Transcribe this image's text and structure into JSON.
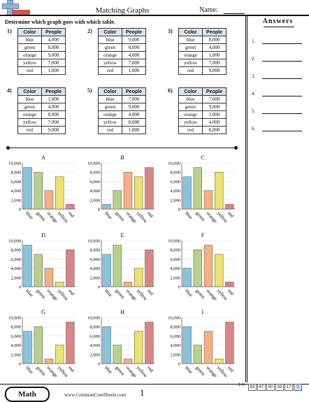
{
  "header": {
    "title": "Matching Graphs",
    "name_label": "Name:"
  },
  "instructions": "Determine which graph goes with which table.",
  "answers": {
    "title": "Answers",
    "items": [
      "1.",
      "2.",
      "3.",
      "4.",
      "5.",
      "6."
    ]
  },
  "tables": [
    {
      "num": "1)",
      "headers": [
        "Color",
        "People"
      ],
      "rows": [
        [
          "blue",
          "4,000"
        ],
        [
          "green",
          "8,000"
        ],
        [
          "orange",
          "9,000"
        ],
        [
          "yellow",
          "7,000"
        ],
        [
          "red",
          "1,000"
        ]
      ]
    },
    {
      "num": "2)",
      "headers": [
        "Color",
        "People"
      ],
      "rows": [
        [
          "blue",
          "9,000"
        ],
        [
          "green",
          "8,000"
        ],
        [
          "orange",
          "4,000"
        ],
        [
          "yellow",
          "7,000"
        ],
        [
          "red",
          "1,000"
        ]
      ]
    },
    {
      "num": "3)",
      "headers": [
        "Color",
        "People"
      ],
      "rows": [
        [
          "blue",
          "8,000"
        ],
        [
          "green",
          "4,000"
        ],
        [
          "orange",
          "1,000"
        ],
        [
          "yellow",
          "7,000"
        ],
        [
          "red",
          "9,000"
        ]
      ]
    },
    {
      "num": "4)",
      "headers": [
        "Color",
        "People"
      ],
      "rows": [
        [
          "blue",
          "1,000"
        ],
        [
          "green",
          "4,000"
        ],
        [
          "orange",
          "8,000"
        ],
        [
          "yellow",
          "7,000"
        ],
        [
          "red",
          "9,000"
        ]
      ]
    },
    {
      "num": "5)",
      "headers": [
        "Color",
        "People"
      ],
      "rows": [
        [
          "blue",
          "7,000"
        ],
        [
          "green",
          "9,000"
        ],
        [
          "orange",
          "4,000"
        ],
        [
          "yellow",
          "8,000"
        ],
        [
          "red",
          "1,000"
        ]
      ]
    },
    {
      "num": "6)",
      "headers": [
        "Color",
        "People"
      ],
      "rows": [
        [
          "blue",
          "7,000"
        ],
        [
          "green",
          "9,000"
        ],
        [
          "orange",
          "1,000"
        ],
        [
          "yellow",
          "4,000"
        ],
        [
          "red",
          "8,000"
        ]
      ]
    }
  ],
  "chart_data": [
    {
      "type": "bar",
      "title": "A",
      "categories": [
        "blue",
        "green",
        "orange",
        "yellow",
        "red"
      ],
      "values": [
        9000,
        8000,
        4000,
        7000,
        1000
      ],
      "ylim": [
        0,
        10000
      ],
      "yticks": [
        "0",
        "2,000",
        "4,000",
        "6,000",
        "8,000",
        "10,000"
      ]
    },
    {
      "type": "bar",
      "title": "B",
      "categories": [
        "blue",
        "green",
        "orange",
        "yellow",
        "red"
      ],
      "values": [
        1000,
        4000,
        8000,
        7000,
        9000
      ],
      "ylim": [
        0,
        10000
      ],
      "yticks": [
        "0",
        "2,000",
        "4,000",
        "6,000",
        "8,000",
        "10,000"
      ]
    },
    {
      "type": "bar",
      "title": "C",
      "categories": [
        "blue",
        "green",
        "orange",
        "yellow",
        "red"
      ],
      "values": [
        7000,
        9000,
        4000,
        8000,
        1000
      ],
      "ylim": [
        0,
        10000
      ],
      "yticks": [
        "0",
        "2,000",
        "4,000",
        "6,000",
        "8,000",
        "10,000"
      ]
    },
    {
      "type": "bar",
      "title": "D",
      "categories": [
        "blue",
        "green",
        "orange",
        "yellow",
        "red"
      ],
      "values": [
        9000,
        7000,
        4000,
        1000,
        8000
      ],
      "ylim": [
        0,
        10000
      ],
      "yticks": [
        "0",
        "2,000",
        "4,000",
        "6,000",
        "8,000",
        "10,000"
      ]
    },
    {
      "type": "bar",
      "title": "E",
      "categories": [
        "blue",
        "green",
        "orange",
        "yellow",
        "red"
      ],
      "values": [
        7000,
        9000,
        1000,
        4000,
        8000
      ],
      "ylim": [
        0,
        10000
      ],
      "yticks": [
        "0",
        "2,000",
        "4,000",
        "6,000",
        "8,000",
        "10,000"
      ]
    },
    {
      "type": "bar",
      "title": "F",
      "categories": [
        "blue",
        "green",
        "orange",
        "yellow",
        "red"
      ],
      "values": [
        4000,
        8000,
        9000,
        7000,
        1000
      ],
      "ylim": [
        0,
        10000
      ],
      "yticks": [
        "0",
        "2,000",
        "4,000",
        "6,000",
        "8,000",
        "10,000"
      ]
    },
    {
      "type": "bar",
      "title": "G",
      "categories": [
        "blue",
        "green",
        "orange",
        "yellow",
        "red"
      ],
      "values": [
        7000,
        8000,
        1000,
        4000,
        9000
      ],
      "ylim": [
        0,
        10000
      ],
      "yticks": [
        "0",
        "2,000",
        "4,000",
        "6,000",
        "8,000",
        "10,000"
      ]
    },
    {
      "type": "bar",
      "title": "H",
      "categories": [
        "blue",
        "green",
        "orange",
        "yellow",
        "red"
      ],
      "values": [
        8000,
        4000,
        1000,
        7000,
        9000
      ],
      "ylim": [
        0,
        10000
      ],
      "yticks": [
        "0",
        "2,000",
        "4,000",
        "6,000",
        "8,000",
        "10,000"
      ]
    },
    {
      "type": "bar",
      "title": "I",
      "categories": [
        "blue",
        "green",
        "orange",
        "yellow",
        "red"
      ],
      "values": [
        8000,
        4000,
        7000,
        1000,
        9000
      ],
      "ylim": [
        0,
        10000
      ],
      "yticks": [
        "0",
        "2,000",
        "4,000",
        "6,000",
        "8,000",
        "10,000"
      ]
    }
  ],
  "bar_colors": {
    "blue": "#88c4dc",
    "green": "#b8d08c",
    "orange": "#f4b183",
    "yellow": "#ede06e",
    "red": "#d98585"
  },
  "footer": {
    "badge": "Math",
    "site": "www.CommonCoreSheets.com",
    "page": "1",
    "score_label": "1-6",
    "scores": [
      "83",
      "67",
      "50",
      "33",
      "17",
      "0"
    ]
  }
}
